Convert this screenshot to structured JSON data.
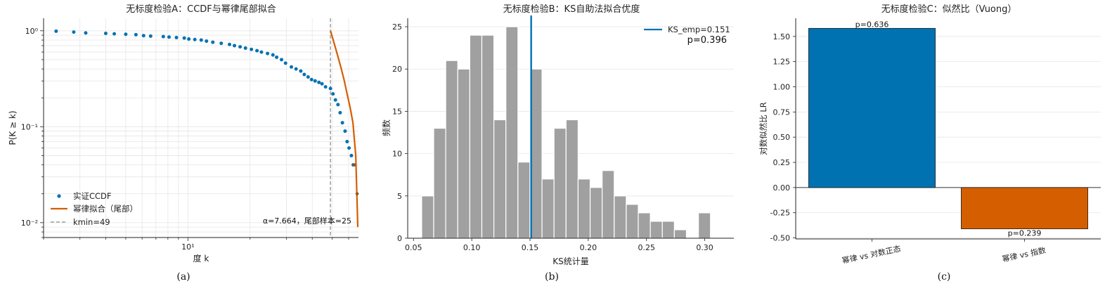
{
  "colors": {
    "blue": "#0072b2",
    "orange": "#d55e00",
    "gray_bar": "#a0a0a0",
    "kmin_line": "#9e9e9e",
    "grid": "#e6e6e6",
    "axis": "#222222"
  },
  "chart_data": [
    {
      "type": "scatter",
      "panel_label": "(a)",
      "title": "无标度检验A：CCDF与幂律尾部拟合",
      "xlabel": "度 k",
      "ylabel": "P(K ≥ k)",
      "xscale": "log",
      "yscale": "log",
      "xlim": [
        2.0,
        67
      ],
      "ylim": [
        0.007,
        1.35
      ],
      "xticks": [
        {
          "value": 10,
          "label": "10¹"
        }
      ],
      "yticks": [
        {
          "value": 1,
          "label": "10⁰"
        },
        {
          "value": 0.1,
          "label": "10⁻¹"
        },
        {
          "value": 0.01,
          "label": "10⁻²"
        }
      ],
      "grid": true,
      "legend_position": "lower-left",
      "legend": [
        {
          "label": "实证CCDF",
          "style": "marker",
          "color": "#0072b2"
        },
        {
          "label": "幂律拟合（尾部）",
          "style": "line",
          "color": "#d55e00"
        },
        {
          "label": "kmin=49",
          "style": "dashed",
          "color": "#9e9e9e"
        }
      ],
      "annotation": "α=7.664，尾部样本=25",
      "kmin": 49,
      "series": [
        {
          "name": "实证CCDF",
          "kind": "points",
          "color": "#0072b2",
          "x": [
            2.3,
            2.8,
            3.2,
            4.0,
            4.4,
            5.0,
            5.6,
            6.1,
            6.6,
            7.6,
            8.1,
            8.8,
            9.6,
            10.1,
            10.8,
            11.6,
            12.3,
            13.2,
            14.5,
            15.9,
            16.8,
            17.9,
            19.0,
            20.3,
            21.6,
            22.7,
            24.3,
            25.8,
            26.9,
            28.4,
            29.7,
            31.7,
            33.4,
            35.2,
            36.6,
            38.2,
            39.7,
            41.3,
            43.1,
            44.6,
            46.4,
            49.0,
            50.4,
            51.8,
            53.3,
            54.6,
            56.0,
            57.7,
            59.0,
            60.3,
            61.9,
            63.2
          ],
          "y": [
            0.99,
            0.97,
            0.95,
            0.94,
            0.93,
            0.92,
            0.91,
            0.89,
            0.88,
            0.87,
            0.86,
            0.85,
            0.84,
            0.82,
            0.81,
            0.8,
            0.78,
            0.76,
            0.74,
            0.72,
            0.7,
            0.68,
            0.66,
            0.64,
            0.62,
            0.6,
            0.58,
            0.56,
            0.53,
            0.5,
            0.46,
            0.42,
            0.4,
            0.38,
            0.35,
            0.33,
            0.31,
            0.3,
            0.29,
            0.28,
            0.26,
            0.25,
            0.22,
            0.19,
            0.17,
            0.14,
            0.11,
            0.09,
            0.07,
            0.06,
            0.05,
            0.04
          ]
        },
        {
          "name": "幂律拟合（尾部）",
          "kind": "line",
          "color": "#d55e00",
          "x": [
            49,
            51,
            53,
            55,
            57,
            59,
            61,
            63,
            65,
            66.5
          ],
          "y": [
            1.0,
            0.75,
            0.56,
            0.42,
            0.31,
            0.22,
            0.16,
            0.11,
            0.05,
            0.009
          ]
        },
        {
          "name": "tail-markers",
          "kind": "points",
          "color": "#8b5a2b",
          "x": [
            64.0,
            66.0
          ],
          "y": [
            0.04,
            0.02
          ]
        }
      ]
    },
    {
      "type": "bar",
      "panel_label": "(b)",
      "title": "无标度检验B：KS自助法拟合优度",
      "xlabel": "KS统计量",
      "ylabel": "频数",
      "xlim": [
        0.045,
        0.325
      ],
      "ylim": [
        0,
        26
      ],
      "xticks": [
        0.05,
        0.1,
        0.15,
        0.2,
        0.25,
        0.3
      ],
      "xtick_labels": [
        "0.05",
        "0.10",
        "0.15",
        "0.20",
        "0.25",
        "0.30"
      ],
      "yticks": [
        0,
        5,
        10,
        15,
        20,
        25
      ],
      "grid": true,
      "legend_position": "top-right",
      "legend": [
        {
          "label": "KS_emp=0.151",
          "style": "line",
          "color": "#0072b2"
        }
      ],
      "p_label": "p=0.396",
      "ks_emp": 0.151,
      "bin_start": 0.057,
      "bin_width": 0.01033,
      "values": [
        5,
        13,
        21,
        20,
        24,
        24,
        14,
        25,
        9,
        20,
        7,
        13,
        14,
        7,
        6,
        8,
        5,
        4,
        3,
        2,
        2,
        1,
        0,
        3
      ]
    },
    {
      "type": "bar",
      "panel_label": "(c)",
      "title": "无标度检验C：似然比（Vuong）",
      "xlabel": "",
      "ylabel": "对数似然比 LR",
      "ylim": [
        -0.51,
        1.68
      ],
      "yticks": [
        -0.5,
        -0.25,
        0.0,
        0.25,
        0.5,
        0.75,
        1.0,
        1.25,
        1.5
      ],
      "ytick_labels": [
        "-0.50",
        "-0.25",
        "0.00",
        "0.25",
        "0.50",
        "0.75",
        "1.00",
        "1.25",
        "1.50"
      ],
      "grid": true,
      "categories": [
        "幂律 vs 对数正态",
        "幂律 vs 指数"
      ],
      "values": [
        1.58,
        -0.41
      ],
      "bar_labels": [
        "p=0.636",
        "p=0.239"
      ],
      "bar_colors": [
        "#0072b2",
        "#d55e00"
      ]
    }
  ]
}
